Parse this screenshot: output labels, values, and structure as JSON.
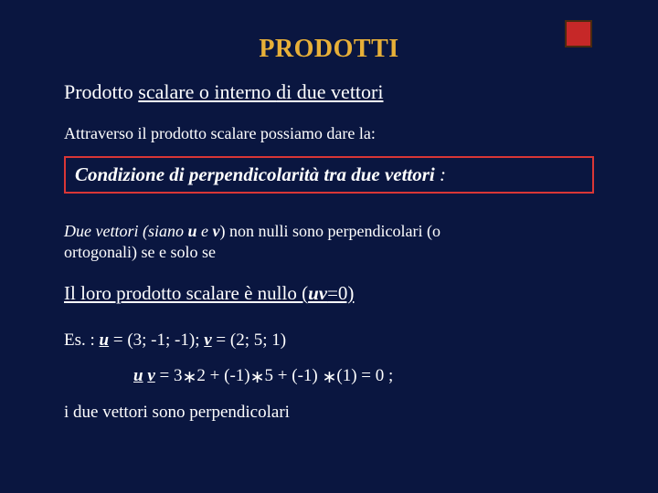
{
  "colors": {
    "background": "#0a1640",
    "text": "#ffffff",
    "title": "#e8b038",
    "box_border": "#d93636",
    "corner_fill": "#c62828",
    "corner_border": "#4a2a10"
  },
  "title": "PRODOTTI",
  "subtitle_pre": "Prodotto ",
  "subtitle_ul": "scalare o interno ",
  "subtitle_post": "di due vettori",
  "intro": "Attraverso il prodotto scalare possiamo dare la:",
  "boxed_pre": "Condizione di perpendicolarità tra due vettori",
  "boxed_colon": " :",
  "definition_line1_a": "Due vettori (siano ",
  "definition_u": "u",
  "definition_and": " e ",
  "definition_v": "v",
  "definition_line1_b": ") non nulli sono perpendicolari (o",
  "definition_line2": "ortogonali) se e solo se",
  "conclusion_a": "Il loro prodotto scalare è nullo (",
  "conclusion_uv": "uv",
  "conclusion_eq": "=0)",
  "ex_label": "Es. :   ",
  "ex_u": "u",
  "ex_u_val": " = (3; -1; -1);    ",
  "ex_v": "v",
  "ex_v_val": " = (2; 5; 1)",
  "ex2_u": "u",
  "ex2_sp": " ",
  "ex2_v": "v",
  "ex2_a": " = 3",
  "ex2_star1": "∗",
  "ex2_b": "2  + (-1)",
  "ex2_star2": "∗",
  "ex2_c": "5 + (-1) ",
  "ex2_star3": "∗",
  "ex2_d": "(1) = 0  ;",
  "final": "i due vettori sono perpendicolari"
}
